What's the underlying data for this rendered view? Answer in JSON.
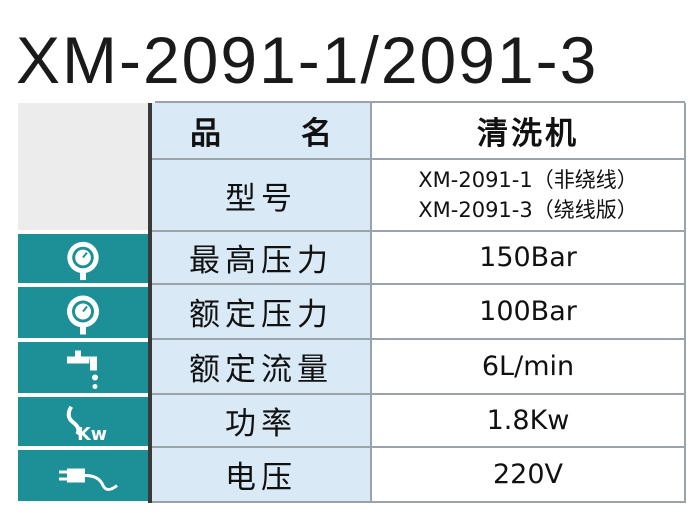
{
  "title": "XM-2091-1/2091-3",
  "table": {
    "header": {
      "label": "品名",
      "value": "清洗机"
    },
    "rows": [
      {
        "label": "型号",
        "value": [
          "XM-2091-1（非绕线）",
          "XM-2091-3（绕线版）"
        ]
      },
      {
        "label": "最高压力",
        "value": "150Bar"
      },
      {
        "label": "额定压力",
        "value": "100Bar"
      },
      {
        "label": "额定流量",
        "value": "6L/min"
      },
      {
        "label": "功率",
        "value": "1.8Kw"
      },
      {
        "label": "电压",
        "value": "220V"
      }
    ]
  }
}
